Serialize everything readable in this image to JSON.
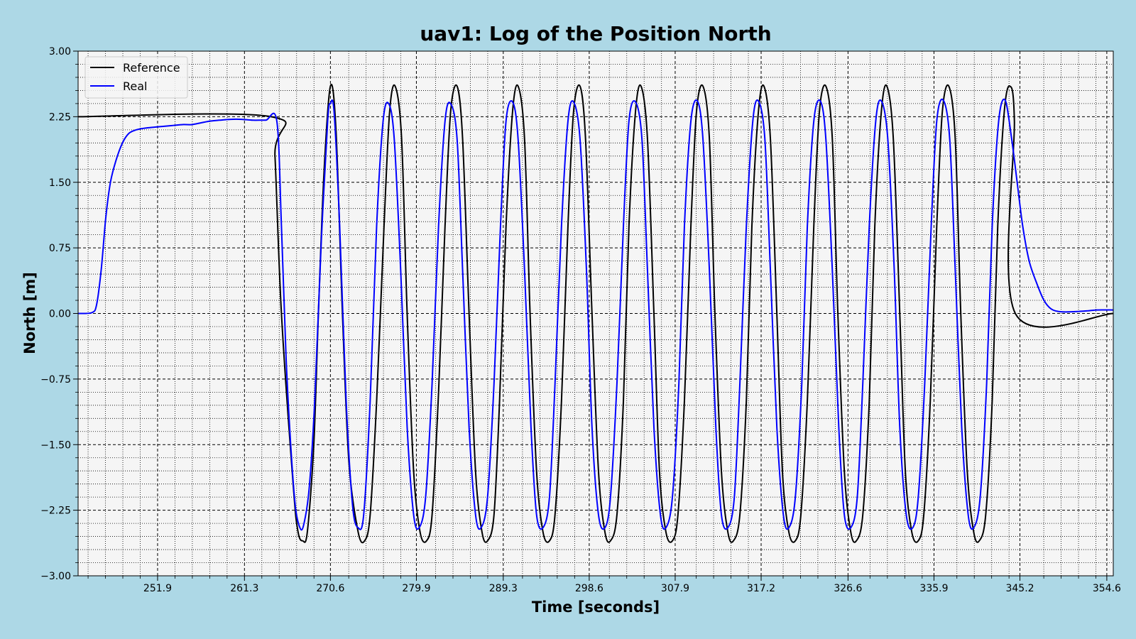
{
  "figure": {
    "background": "#add8e6",
    "plot_background": "#f5f5f5"
  },
  "chart_data": {
    "type": "line",
    "title": "uav1: Log of the Position North",
    "xlabel": "Time [seconds]",
    "ylabel": "North [m]",
    "xlim": [
      243.3,
      355.3
    ],
    "ylim": [
      -3.0,
      3.0
    ],
    "x_ticks": [
      251.9,
      261.3,
      270.6,
      279.9,
      289.3,
      298.6,
      307.9,
      317.2,
      326.6,
      335.9,
      345.2,
      354.6
    ],
    "x_tick_labels": [
      "251.9",
      "261.3",
      "270.6",
      "279.9",
      "289.3",
      "298.6",
      "307.9",
      "317.2",
      "326.6",
      "335.9",
      "345.2",
      "354.6"
    ],
    "y_ticks": [
      -3.0,
      -2.25,
      -1.5,
      -0.75,
      0.0,
      0.75,
      1.5,
      2.25,
      3.0
    ],
    "y_tick_labels": [
      "−3.00",
      "−2.25",
      "−1.50",
      "−0.75",
      "0.00",
      "0.75",
      "1.50",
      "2.25",
      "3.00"
    ],
    "grid": true,
    "legend_position": "top-left",
    "series": [
      {
        "name": "Reference",
        "color": "#000000",
        "points": [
          [
            243.3,
            2.25
          ],
          [
            264.2,
            2.25
          ],
          [
            264.6,
            1.8
          ],
          [
            265.3,
            0.0
          ],
          [
            266.6,
            -2.0
          ],
          [
            267.1,
            -2.5
          ],
          [
            267.6,
            -2.6
          ],
          [
            268.1,
            -2.5
          ],
          [
            268.8,
            -1.5
          ],
          [
            269.3,
            0.0
          ],
          [
            269.9,
            1.6
          ],
          [
            270.6,
            2.6
          ],
          [
            271.2,
            2.1
          ],
          [
            271.9,
            0.0
          ],
          [
            272.6,
            -1.7
          ],
          [
            273.6,
            -2.5
          ],
          [
            274.3,
            -2.6
          ],
          [
            274.9,
            -2.3
          ],
          [
            275.6,
            -1.0
          ],
          [
            276.4,
            1.0
          ],
          [
            277.0,
            2.3
          ],
          [
            277.6,
            2.6
          ],
          [
            278.3,
            2.0
          ],
          [
            278.9,
            0.0
          ],
          [
            279.6,
            -1.8
          ],
          [
            280.3,
            -2.5
          ],
          [
            281.0,
            -2.6
          ],
          [
            281.6,
            -2.3
          ],
          [
            282.3,
            -0.9
          ],
          [
            283.0,
            1.0
          ],
          [
            283.6,
            2.3
          ],
          [
            284.3,
            2.6
          ],
          [
            284.9,
            2.0
          ],
          [
            285.6,
            0.0
          ],
          [
            286.3,
            -1.8
          ],
          [
            287.0,
            -2.5
          ],
          [
            287.6,
            -2.6
          ],
          [
            288.3,
            -2.3
          ],
          [
            288.9,
            -1.0
          ],
          [
            289.6,
            1.0
          ],
          [
            290.3,
            2.3
          ],
          [
            290.9,
            2.6
          ],
          [
            291.6,
            2.0
          ],
          [
            292.2,
            0.0
          ],
          [
            292.9,
            -1.8
          ],
          [
            293.6,
            -2.5
          ],
          [
            294.3,
            -2.6
          ],
          [
            294.9,
            -2.3
          ],
          [
            295.6,
            -1.0
          ],
          [
            296.3,
            1.0
          ],
          [
            296.9,
            2.3
          ],
          [
            297.6,
            2.6
          ],
          [
            298.2,
            2.0
          ],
          [
            298.9,
            0.0
          ],
          [
            299.6,
            -1.8
          ],
          [
            300.3,
            -2.5
          ],
          [
            300.9,
            -2.6
          ],
          [
            301.6,
            -2.3
          ],
          [
            302.3,
            -1.0
          ],
          [
            302.9,
            1.0
          ],
          [
            303.6,
            2.3
          ],
          [
            304.2,
            2.6
          ],
          [
            304.9,
            2.0
          ],
          [
            305.6,
            0.0
          ],
          [
            306.2,
            -1.8
          ],
          [
            306.9,
            -2.5
          ],
          [
            307.6,
            -2.6
          ],
          [
            308.2,
            -2.3
          ],
          [
            308.9,
            -1.0
          ],
          [
            309.6,
            1.0
          ],
          [
            310.2,
            2.3
          ],
          [
            310.9,
            2.6
          ],
          [
            311.6,
            2.0
          ],
          [
            312.2,
            0.0
          ],
          [
            312.9,
            -1.8
          ],
          [
            313.6,
            -2.5
          ],
          [
            314.2,
            -2.6
          ],
          [
            314.9,
            -2.3
          ],
          [
            315.6,
            -1.0
          ],
          [
            316.2,
            1.0
          ],
          [
            316.9,
            2.3
          ],
          [
            317.5,
            2.6
          ],
          [
            318.2,
            2.0
          ],
          [
            318.9,
            0.0
          ],
          [
            319.5,
            -1.8
          ],
          [
            320.2,
            -2.5
          ],
          [
            320.9,
            -2.6
          ],
          [
            321.5,
            -2.3
          ],
          [
            322.2,
            -1.0
          ],
          [
            322.9,
            1.0
          ],
          [
            323.5,
            2.3
          ],
          [
            324.2,
            2.6
          ],
          [
            324.9,
            2.0
          ],
          [
            325.5,
            0.0
          ],
          [
            326.2,
            -1.8
          ],
          [
            326.9,
            -2.5
          ],
          [
            327.5,
            -2.6
          ],
          [
            328.2,
            -2.3
          ],
          [
            328.9,
            -1.0
          ],
          [
            329.5,
            1.0
          ],
          [
            330.2,
            2.3
          ],
          [
            330.8,
            2.6
          ],
          [
            331.5,
            2.0
          ],
          [
            332.2,
            0.0
          ],
          [
            332.8,
            -1.8
          ],
          [
            333.5,
            -2.5
          ],
          [
            334.2,
            -2.6
          ],
          [
            334.8,
            -2.3
          ],
          [
            335.5,
            -1.0
          ],
          [
            336.2,
            1.0
          ],
          [
            336.8,
            2.3
          ],
          [
            337.5,
            2.6
          ],
          [
            338.2,
            2.0
          ],
          [
            338.8,
            0.0
          ],
          [
            339.5,
            -1.8
          ],
          [
            340.2,
            -2.5
          ],
          [
            340.8,
            -2.6
          ],
          [
            341.5,
            -2.3
          ],
          [
            342.2,
            -1.0
          ],
          [
            342.8,
            1.0
          ],
          [
            343.5,
            2.3
          ],
          [
            344.1,
            2.6
          ],
          [
            344.6,
            2.2
          ],
          [
            344.7,
            0.0
          ],
          [
            355.3,
            0.0
          ]
        ]
      },
      {
        "name": "Real",
        "color": "#0000ff",
        "points": [
          [
            243.3,
            0.0
          ],
          [
            244.8,
            0.01
          ],
          [
            245.3,
            0.1
          ],
          [
            245.8,
            0.5
          ],
          [
            246.3,
            1.1
          ],
          [
            246.8,
            1.5
          ],
          [
            247.4,
            1.75
          ],
          [
            248.1,
            1.95
          ],
          [
            248.8,
            2.06
          ],
          [
            249.6,
            2.1
          ],
          [
            250.6,
            2.12
          ],
          [
            252.6,
            2.14
          ],
          [
            253.6,
            2.15
          ],
          [
            254.6,
            2.16
          ],
          [
            255.6,
            2.16
          ],
          [
            256.6,
            2.18
          ],
          [
            257.6,
            2.2
          ],
          [
            258.6,
            2.21
          ],
          [
            259.8,
            2.22
          ],
          [
            261.0,
            2.22
          ],
          [
            262.2,
            2.21
          ],
          [
            263.6,
            2.21
          ],
          [
            264.8,
            2.2
          ],
          [
            265.3,
            1.0
          ],
          [
            265.8,
            -0.5
          ],
          [
            266.3,
            -1.5
          ],
          [
            266.8,
            -2.2
          ],
          [
            267.3,
            -2.45
          ],
          [
            267.7,
            -2.42
          ],
          [
            268.3,
            -2.0
          ],
          [
            268.9,
            -1.0
          ],
          [
            269.6,
            0.8
          ],
          [
            270.3,
            2.2
          ],
          [
            270.6,
            2.4
          ],
          [
            271.0,
            2.3
          ],
          [
            271.6,
            1.0
          ],
          [
            272.3,
            -1.0
          ],
          [
            273.0,
            -2.2
          ],
          [
            273.6,
            -2.45
          ],
          [
            274.2,
            -2.3
          ],
          [
            274.9,
            -1.0
          ],
          [
            275.6,
            1.0
          ],
          [
            276.3,
            2.2
          ],
          [
            276.9,
            2.4
          ],
          [
            277.5,
            2.0
          ],
          [
            278.2,
            0.5
          ],
          [
            278.9,
            -1.3
          ],
          [
            279.6,
            -2.3
          ],
          [
            280.2,
            -2.45
          ],
          [
            280.9,
            -2.1
          ],
          [
            281.6,
            -0.8
          ],
          [
            282.3,
            1.0
          ],
          [
            283.0,
            2.2
          ],
          [
            283.6,
            2.4
          ],
          [
            284.3,
            2.0
          ],
          [
            284.9,
            0.5
          ],
          [
            285.6,
            -1.3
          ],
          [
            286.3,
            -2.3
          ],
          [
            286.9,
            -2.45
          ],
          [
            287.6,
            -2.1
          ],
          [
            288.3,
            -0.8
          ],
          [
            289.0,
            1.0
          ],
          [
            289.6,
            2.2
          ],
          [
            290.3,
            2.42
          ],
          [
            290.9,
            2.0
          ],
          [
            291.6,
            0.5
          ],
          [
            292.3,
            -1.3
          ],
          [
            292.9,
            -2.3
          ],
          [
            293.6,
            -2.45
          ],
          [
            294.3,
            -2.1
          ],
          [
            294.9,
            -0.8
          ],
          [
            295.6,
            1.0
          ],
          [
            296.3,
            2.2
          ],
          [
            296.9,
            2.42
          ],
          [
            297.6,
            2.0
          ],
          [
            298.3,
            0.5
          ],
          [
            298.9,
            -1.3
          ],
          [
            299.6,
            -2.3
          ],
          [
            300.3,
            -2.45
          ],
          [
            300.9,
            -2.1
          ],
          [
            301.6,
            -0.8
          ],
          [
            302.3,
            1.0
          ],
          [
            302.9,
            2.2
          ],
          [
            303.6,
            2.42
          ],
          [
            304.3,
            2.0
          ],
          [
            304.9,
            0.5
          ],
          [
            305.6,
            -1.3
          ],
          [
            306.3,
            -2.3
          ],
          [
            306.9,
            -2.45
          ],
          [
            307.6,
            -2.1
          ],
          [
            308.3,
            -0.8
          ],
          [
            308.9,
            1.0
          ],
          [
            309.6,
            2.2
          ],
          [
            310.3,
            2.43
          ],
          [
            310.9,
            2.0
          ],
          [
            311.6,
            0.5
          ],
          [
            312.3,
            -1.3
          ],
          [
            312.9,
            -2.3
          ],
          [
            313.6,
            -2.45
          ],
          [
            314.3,
            -2.1
          ],
          [
            314.9,
            -0.8
          ],
          [
            315.6,
            1.0
          ],
          [
            316.3,
            2.2
          ],
          [
            316.9,
            2.43
          ],
          [
            317.6,
            2.0
          ],
          [
            318.2,
            0.5
          ],
          [
            318.9,
            -1.3
          ],
          [
            319.6,
            -2.3
          ],
          [
            320.2,
            -2.45
          ],
          [
            320.9,
            -2.1
          ],
          [
            321.6,
            -0.8
          ],
          [
            322.2,
            1.0
          ],
          [
            322.9,
            2.2
          ],
          [
            323.6,
            2.43
          ],
          [
            324.2,
            2.0
          ],
          [
            324.9,
            0.5
          ],
          [
            325.6,
            -1.3
          ],
          [
            326.2,
            -2.3
          ],
          [
            326.9,
            -2.45
          ],
          [
            327.6,
            -2.1
          ],
          [
            328.2,
            -0.8
          ],
          [
            328.9,
            1.0
          ],
          [
            329.6,
            2.2
          ],
          [
            330.2,
            2.43
          ],
          [
            330.9,
            2.0
          ],
          [
            331.6,
            0.5
          ],
          [
            332.2,
            -1.3
          ],
          [
            332.9,
            -2.3
          ],
          [
            333.6,
            -2.45
          ],
          [
            334.2,
            -2.1
          ],
          [
            334.9,
            -0.8
          ],
          [
            335.6,
            1.0
          ],
          [
            336.2,
            2.2
          ],
          [
            336.9,
            2.44
          ],
          [
            337.6,
            2.0
          ],
          [
            338.2,
            0.5
          ],
          [
            338.9,
            -1.3
          ],
          [
            339.6,
            -2.3
          ],
          [
            340.2,
            -2.45
          ],
          [
            340.9,
            -2.1
          ],
          [
            341.6,
            -0.8
          ],
          [
            342.2,
            1.0
          ],
          [
            342.9,
            2.2
          ],
          [
            343.6,
            2.44
          ],
          [
            344.3,
            2.0
          ],
          [
            344.9,
            1.5
          ],
          [
            345.5,
            1.0
          ],
          [
            346.2,
            0.6
          ],
          [
            347.0,
            0.35
          ],
          [
            347.8,
            0.15
          ],
          [
            348.6,
            0.05
          ],
          [
            349.6,
            0.02
          ],
          [
            351.0,
            0.02
          ],
          [
            352.5,
            0.03
          ],
          [
            353.5,
            0.04
          ],
          [
            355.3,
            0.04
          ]
        ]
      }
    ]
  }
}
